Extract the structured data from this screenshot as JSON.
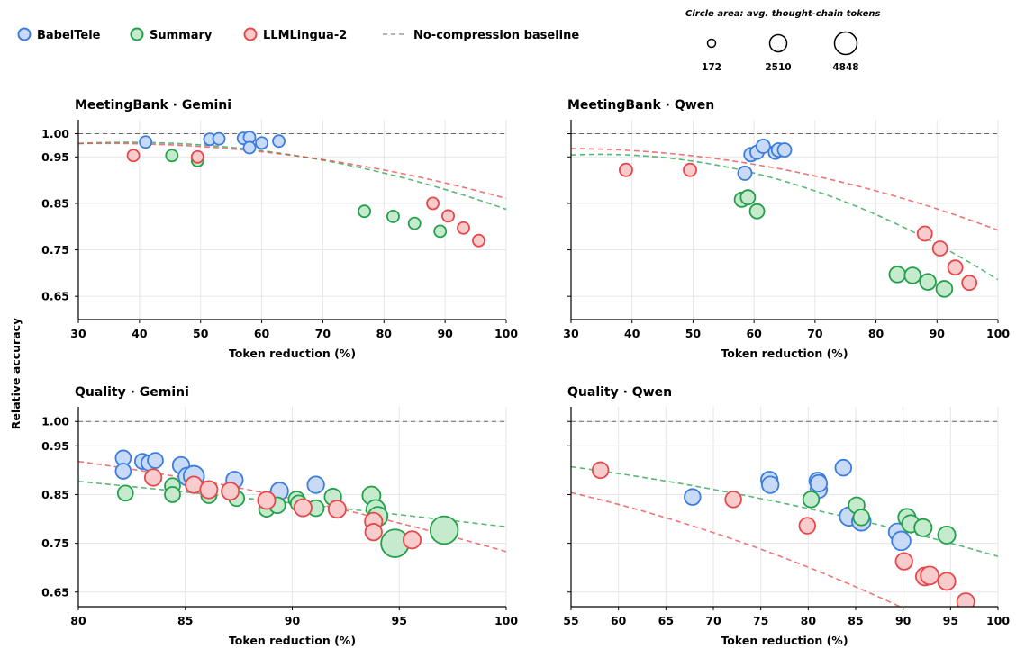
{
  "legend": {
    "items": [
      {
        "label": "BabelTele",
        "color": "#3b7ddd",
        "fill": "#c9daf6"
      },
      {
        "label": "Summary",
        "color": "#23a04a",
        "fill": "#c5eacd"
      },
      {
        "label": "LLMLingua-2",
        "color": "#e8474a",
        "fill": "#f8cccc"
      },
      {
        "label": "No-compression baseline",
        "color": "#888888",
        "dashed": true
      }
    ],
    "size_legend": {
      "title": "Circle area: avg. thought-chain tokens",
      "values": [
        172,
        2510,
        4848
      ]
    }
  },
  "shared_ylabel": "Relative accuracy",
  "chart_data": [
    {
      "type": "scatter",
      "title": "MeetingBank · Gemini",
      "xlabel": "Token reduction (%)",
      "xlim": [
        30,
        100
      ],
      "ylim": [
        0.6,
        1.03
      ],
      "xticks": [
        30,
        40,
        50,
        60,
        70,
        80,
        90,
        100
      ],
      "yticks": [
        0.65,
        0.75,
        0.85,
        0.95,
        1.0
      ],
      "ytick_labels": [
        "0.65",
        "0.75",
        "0.85",
        "0.95",
        "1.00"
      ],
      "baseline": 1.0,
      "series": [
        {
          "name": "BabelTele",
          "points": [
            [
              41,
              0.982,
              600
            ],
            [
              51.5,
              0.988,
              600
            ],
            [
              53,
              0.989,
              600
            ],
            [
              57,
              0.99,
              600
            ],
            [
              58,
              0.992,
              600
            ],
            [
              58,
              0.97,
              600
            ],
            [
              60,
              0.98,
              600
            ],
            [
              62.8,
              0.984,
              600
            ]
          ]
        },
        {
          "name": "Summary",
          "points": [
            [
              45.3,
              0.953,
              600
            ],
            [
              49.5,
              0.942,
              600
            ],
            [
              76.8,
              0.833,
              600
            ],
            [
              81.5,
              0.822,
              600
            ],
            [
              85,
              0.807,
              600
            ],
            [
              89.2,
              0.79,
              600
            ]
          ]
        },
        {
          "name": "LLMLingua-2",
          "points": [
            [
              39,
              0.953,
              600
            ],
            [
              49.5,
              0.95,
              600
            ],
            [
              88,
              0.85,
              600
            ],
            [
              90.5,
              0.823,
              600
            ],
            [
              93,
              0.797,
              600
            ],
            [
              95.5,
              0.77,
              600
            ]
          ]
        }
      ],
      "trends": [
        {
          "name": "Summary",
          "coeffs": [
            -3.75e-05,
            0.0006,
            0.979
          ]
        },
        {
          "name": "LLMLingua-2",
          "coeffs": [
            -2.75e-05,
            0.00024,
            0.9786
          ]
        }
      ]
    },
    {
      "type": "scatter",
      "title": "MeetingBank · Qwen",
      "xlabel": "Token reduction (%)",
      "xlim": [
        30,
        100
      ],
      "ylim": [
        0.6,
        1.03
      ],
      "xticks": [
        30,
        40,
        50,
        60,
        70,
        80,
        90,
        100
      ],
      "yticks": [
        0.65,
        0.75,
        0.85,
        0.95,
        1.0
      ],
      "ytick_labels": [
        "",
        "",
        "",
        "",
        ""
      ],
      "baseline": 1.0,
      "series": [
        {
          "name": "BabelTele",
          "points": [
            [
              58.5,
              0.915,
              800
            ],
            [
              59.5,
              0.955,
              800
            ],
            [
              60.5,
              0.96,
              800
            ],
            [
              61.5,
              0.973,
              800
            ],
            [
              63.5,
              0.96,
              800
            ],
            [
              64,
              0.965,
              800
            ],
            [
              65,
              0.965,
              800
            ]
          ]
        },
        {
          "name": "Summary",
          "points": [
            [
              58,
              0.858,
              900
            ],
            [
              59,
              0.863,
              900
            ],
            [
              60.5,
              0.833,
              900
            ],
            [
              83.5,
              0.697,
              1100
            ],
            [
              86,
              0.695,
              1100
            ],
            [
              88.5,
              0.681,
              1100
            ],
            [
              91.2,
              0.666,
              1100
            ]
          ]
        },
        {
          "name": "LLMLingua-2",
          "points": [
            [
              39,
              0.922,
              700
            ],
            [
              49.5,
              0.922,
              700
            ],
            [
              88,
              0.785,
              900
            ],
            [
              90.5,
              0.753,
              900
            ],
            [
              93,
              0.712,
              900
            ],
            [
              95.3,
              0.679,
              900
            ]
          ]
        }
      ],
      "trends": [
        {
          "name": "Summary",
          "coeffs": [
            -6.35e-05,
            0.000613,
            0.954
          ]
        },
        {
          "name": "LLMLingua-2",
          "coeffs": [
            -3.45e-05,
            -9.5e-05,
            0.968
          ]
        }
      ]
    },
    {
      "type": "scatter",
      "title": "Quality · Gemini",
      "xlabel": "Token reduction (%)",
      "xlim": [
        80,
        100
      ],
      "ylim": [
        0.62,
        1.03
      ],
      "xticks": [
        80,
        85,
        90,
        95,
        100
      ],
      "yticks": [
        0.65,
        0.75,
        0.85,
        0.95,
        1.0
      ],
      "ytick_labels": [
        "0.65",
        "0.75",
        "0.85",
        "0.95",
        "1.00"
      ],
      "baseline": 1.0,
      "series": [
        {
          "name": "BabelTele",
          "points": [
            [
              82.1,
              0.925,
              1000
            ],
            [
              82.1,
              0.898,
              1000
            ],
            [
              83,
              0.918,
              1000
            ],
            [
              83.3,
              0.915,
              1000
            ],
            [
              83.6,
              0.92,
              1000
            ],
            [
              84.8,
              0.91,
              1200
            ],
            [
              85.1,
              0.887,
              1400
            ],
            [
              85.4,
              0.888,
              1800
            ],
            [
              87.3,
              0.88,
              1200
            ],
            [
              89.4,
              0.857,
              1300
            ],
            [
              91.1,
              0.87,
              1200
            ]
          ]
        },
        {
          "name": "Summary",
          "points": [
            [
              82.2,
              0.853,
              1000
            ],
            [
              84.4,
              0.868,
              1000
            ],
            [
              84.4,
              0.85,
              1000
            ],
            [
              86.1,
              0.848,
              1000
            ],
            [
              87.4,
              0.842,
              1000
            ],
            [
              88.8,
              0.82,
              1000
            ],
            [
              89.3,
              0.828,
              1100
            ],
            [
              90.2,
              0.84,
              1100
            ],
            [
              90.3,
              0.832,
              1100
            ],
            [
              91.1,
              0.822,
              1100
            ],
            [
              91.9,
              0.845,
              1200
            ],
            [
              93.7,
              0.848,
              1400
            ],
            [
              93.9,
              0.82,
              1500
            ],
            [
              94.0,
              0.805,
              1600
            ],
            [
              94.8,
              0.75,
              3300
            ],
            [
              97.1,
              0.777,
              3300
            ]
          ]
        },
        {
          "name": "LLMLingua-2",
          "points": [
            [
              83.5,
              0.885,
              1200
            ],
            [
              85.4,
              0.87,
              1200
            ],
            [
              86.1,
              0.86,
              1300
            ],
            [
              87.1,
              0.857,
              1300
            ],
            [
              88.8,
              0.838,
              1300
            ],
            [
              90.5,
              0.823,
              1300
            ],
            [
              92.1,
              0.82,
              1300
            ],
            [
              93.8,
              0.795,
              1300
            ],
            [
              93.8,
              0.773,
              1200
            ],
            [
              95.6,
              0.757,
              1300
            ]
          ]
        }
      ],
      "trends": [
        {
          "name": "Summary",
          "coeffs": [
            -2e-05,
            -0.00426,
            0.8771
          ]
        },
        {
          "name": "LLMLingua-2",
          "coeffs": [
            -0.0001625,
            -0.006,
            0.918
          ]
        }
      ]
    },
    {
      "type": "scatter",
      "title": "Quality · Qwen",
      "xlabel": "Token reduction (%)",
      "xlim": [
        55,
        100
      ],
      "ylim": [
        0.62,
        1.03
      ],
      "xticks": [
        55,
        60,
        65,
        70,
        75,
        80,
        85,
        90,
        95,
        100
      ],
      "yticks": [
        0.65,
        0.75,
        0.85,
        0.95,
        1.0
      ],
      "ytick_labels": [
        "",
        "",
        "",
        "",
        ""
      ],
      "baseline": 1.0,
      "series": [
        {
          "name": "BabelTele",
          "points": [
            [
              67.8,
              0.845,
              1100
            ],
            [
              75.9,
              0.88,
              1200
            ],
            [
              76,
              0.87,
              1200
            ],
            [
              81,
              0.878,
              1200
            ],
            [
              81.1,
              0.86,
              1200
            ],
            [
              81.1,
              0.873,
              1200
            ],
            [
              83.7,
              0.905,
              1100
            ],
            [
              84.3,
              0.805,
              1500
            ],
            [
              85.6,
              0.795,
              1500
            ],
            [
              89.4,
              0.773,
              1300
            ],
            [
              89.8,
              0.755,
              1500
            ]
          ]
        },
        {
          "name": "Summary",
          "points": [
            [
              80.3,
              0.84,
              1100
            ],
            [
              85.1,
              0.828,
              1100
            ],
            [
              85.6,
              0.803,
              1100
            ],
            [
              90.4,
              0.803,
              1300
            ],
            [
              90.8,
              0.79,
              1300
            ],
            [
              92.1,
              0.782,
              1300
            ],
            [
              94.6,
              0.767,
              1300
            ]
          ]
        },
        {
          "name": "LLMLingua-2",
          "points": [
            [
              58.1,
              0.9,
              1100
            ],
            [
              72.1,
              0.84,
              1100
            ],
            [
              79.9,
              0.786,
              1100
            ],
            [
              90.1,
              0.713,
              1200
            ],
            [
              92.3,
              0.682,
              1400
            ],
            [
              92.8,
              0.684,
              1400
            ],
            [
              94.6,
              0.672,
              1300
            ],
            [
              96.6,
              0.63,
              1300
            ]
          ]
        }
      ],
      "trends": [
        {
          "name": "Summary",
          "coeffs": [
            -3.3e-05,
            -0.0026,
            0.907
          ]
        },
        {
          "name": "LLMLingua-2",
          "coeffs": [
            -6.45e-05,
            -0.00451,
            0.854
          ]
        }
      ]
    }
  ]
}
